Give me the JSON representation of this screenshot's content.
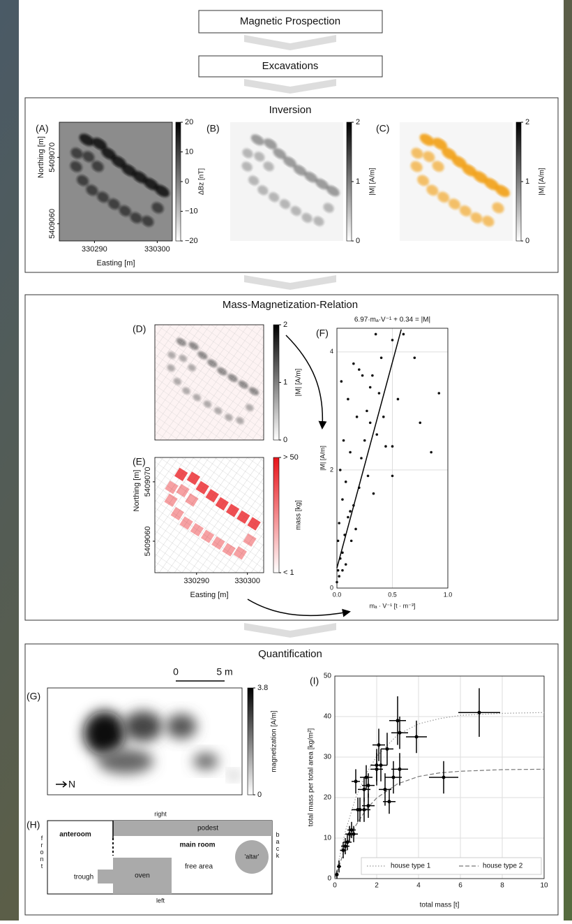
{
  "flow": {
    "step1": "Magnetic Prospection",
    "step2": "Excavations"
  },
  "inversion": {
    "title": "Inversion",
    "xlabel": "Easting [m]",
    "ylabel": "Northing [m]",
    "xlim": [
      330284.4,
      330302.4
    ],
    "xticks": [
      330290,
      330300
    ],
    "ylim": [
      5409057.4,
      5409075.3
    ],
    "yticks": [
      5409060,
      5409070
    ],
    "panels": [
      {
        "label": "(A)",
        "cbar_label": "ΔBz [nT]",
        "cbar_lim": [
          -20,
          20
        ],
        "cbar_ticks": [
          20,
          10,
          0,
          {
            "value": -10,
            "label": "−10"
          },
          {
            "value": -20,
            "label": "−20"
          }
        ]
      },
      {
        "label": "(B)",
        "cbar_label": "|M| [A/m]",
        "cbar_lim": [
          0,
          2
        ],
        "cbar_ticks": [
          2,
          1,
          0
        ]
      },
      {
        "label": "(C)",
        "cbar_label": "|M| [A/m]",
        "cbar_lim": [
          0,
          2
        ],
        "cbar_ticks": [
          2,
          1,
          0
        ]
      }
    ]
  },
  "relation": {
    "title": "Mass-Magnetization-Relation",
    "panel_d": {
      "label": "(D)",
      "cbar_label": "|M| [A/m]",
      "cbar_lim": [
        0,
        2
      ],
      "cbar_ticks": [
        2,
        1,
        0
      ]
    },
    "panel_e": {
      "label": "(E)",
      "cbar_label": "mass [kg]",
      "cbar_lim": [
        1,
        50
      ],
      "cbar_ticks": [
        {
          "value": 50,
          "label": "> 50"
        },
        {
          "value": 1,
          "label": "< 1"
        }
      ],
      "xlabel": "Easting [m]",
      "ylabel": "Northing [m]",
      "xlim": [
        330281.8,
        330303.2
      ],
      "xticks": [
        330290,
        330300
      ],
      "ylim": [
        5409054.7,
        5409074.1
      ],
      "yticks": [
        5409060,
        5409070
      ]
    }
  },
  "quantification": {
    "title": "Quantification",
    "scale_start": 0,
    "scale_end": "5 m",
    "panel_g": {
      "label": "(G)",
      "cbar_label": "magnetization [A/m]",
      "cbar_lim": [
        0,
        3.8
      ],
      "cbar_ticks": [
        3.8,
        0
      ],
      "north": "N"
    },
    "panel_h": {
      "label": "(H)",
      "right": "right",
      "left": "left",
      "front": "front",
      "back": "back",
      "anteroom": "anteroom",
      "podest": "podest",
      "main_room": "main room",
      "altar": "'altar'",
      "trough": "trough",
      "oven": "oven",
      "free_area": "free area"
    }
  },
  "chart_data": [
    {
      "type": "scatter",
      "label": "(F)",
      "title": "6.97·mₐ·V⁻¹ + 0.34 = |M|",
      "xlabel": "mₐ · V⁻¹ [t · m⁻³]",
      "ylabel": "|M| [A/m]",
      "xlim": [
        0,
        1.0
      ],
      "ylim": [
        0,
        4.4
      ],
      "xticks": [
        {
          "value": 0,
          "label": "0.0"
        },
        {
          "value": 0.5,
          "label": "0.5"
        },
        {
          "value": 1,
          "label": "1.0"
        }
      ],
      "yticks": [
        0,
        2,
        4
      ],
      "grid": true,
      "color": "#111111",
      "x": [
        0.0,
        0.01,
        0.01,
        0.02,
        0.02,
        0.03,
        0.03,
        0.04,
        0.05,
        0.05,
        0.06,
        0.07,
        0.08,
        0.1,
        0.1,
        0.12,
        0.13,
        0.15,
        0.15,
        0.17,
        0.18,
        0.2,
        0.2,
        0.22,
        0.23,
        0.25,
        0.27,
        0.28,
        0.3,
        0.3,
        0.32,
        0.33,
        0.35,
        0.36,
        0.38,
        0.4,
        0.42,
        0.44,
        0.5,
        0.5,
        0.5,
        0.55,
        0.6,
        0.7,
        0.75,
        0.85,
        0.92,
        0.05,
        0.08,
        0.12
      ],
      "values": [
        0.1,
        0.3,
        0.8,
        0.2,
        1.1,
        0.5,
        2.0,
        3.5,
        0.3,
        1.5,
        2.5,
        0.9,
        1.8,
        1.2,
        3.2,
        2.3,
        0.8,
        1.4,
        3.8,
        1.0,
        2.9,
        3.7,
        1.7,
        2.2,
        3.6,
        2.5,
        3.0,
        1.9,
        3.4,
        2.8,
        3.6,
        1.6,
        4.3,
        2.6,
        3.3,
        3.9,
        2.9,
        2.4,
        2.4,
        1.9,
        4.2,
        3.2,
        4.3,
        3.9,
        2.8,
        2.3,
        3.3,
        0.6,
        0.4,
        1.3
      ],
      "fit": {
        "x": [
          0,
          0.58
        ],
        "values": [
          0.34,
          4.38
        ],
        "color": "#000000"
      }
    },
    {
      "type": "errorbar",
      "label": "(I)",
      "xlabel": "total mass [t]",
      "ylabel": "total mass per total area [kg/m²]",
      "xlim": [
        0,
        10
      ],
      "ylim": [
        0,
        50
      ],
      "xticks": [
        0,
        2,
        4,
        6,
        8,
        10
      ],
      "yticks": [
        0,
        10,
        20,
        30,
        40,
        50
      ],
      "grid": true,
      "color": "#000000",
      "legend": "lower right",
      "x": [
        0.1,
        0.2,
        0.4,
        0.5,
        0.6,
        0.7,
        0.8,
        0.9,
        1.0,
        1.1,
        1.2,
        1.4,
        1.4,
        1.5,
        1.6,
        1.6,
        2.0,
        2.0,
        2.1,
        2.2,
        2.4,
        2.5,
        2.6,
        2.8,
        3.0,
        3.1,
        3.1,
        3.9,
        5.2,
        6.9
      ],
      "values": [
        1,
        3,
        7,
        8,
        9,
        11,
        12,
        11,
        24,
        17,
        17,
        22,
        17,
        25,
        18,
        23,
        28,
        27,
        33,
        28,
        22,
        32,
        19,
        25,
        39,
        36,
        27,
        35,
        25,
        41
      ],
      "xerr": [
        0.05,
        0.1,
        0.15,
        0.2,
        0.2,
        0.2,
        0.2,
        0.2,
        0.2,
        0.3,
        0.3,
        0.3,
        0.3,
        0.3,
        0.3,
        0.3,
        0.3,
        0.3,
        0.3,
        0.3,
        0.3,
        0.3,
        0.3,
        0.4,
        0.4,
        0.4,
        0.4,
        0.5,
        0.7,
        1.0
      ],
      "yerr": [
        1,
        1.5,
        2,
        2,
        2,
        2,
        2,
        2,
        3,
        3,
        3,
        3,
        3,
        3,
        3,
        3,
        4,
        4,
        4,
        4,
        4,
        4,
        3,
        4,
        6,
        4,
        4,
        4,
        4,
        6
      ],
      "series": [
        {
          "name": "house type 1",
          "style": "dotted",
          "color": "#999999",
          "x": [
            0,
            0.5,
            1,
            1.5,
            2,
            3,
            4,
            5,
            6,
            8,
            10
          ],
          "values": [
            0,
            11.6,
            20.0,
            25.9,
            30.2,
            35.5,
            38.2,
            39.5,
            40.3,
            40.8,
            41.0
          ]
        },
        {
          "name": "house type 2",
          "style": "dashed",
          "color": "#777777",
          "x": [
            0,
            0.5,
            1,
            1.5,
            2,
            3,
            4,
            5,
            6,
            8,
            10
          ],
          "values": [
            0,
            7.7,
            13.1,
            17.1,
            19.9,
            23.4,
            25.2,
            26.1,
            26.5,
            26.9,
            27.0
          ]
        }
      ]
    }
  ]
}
